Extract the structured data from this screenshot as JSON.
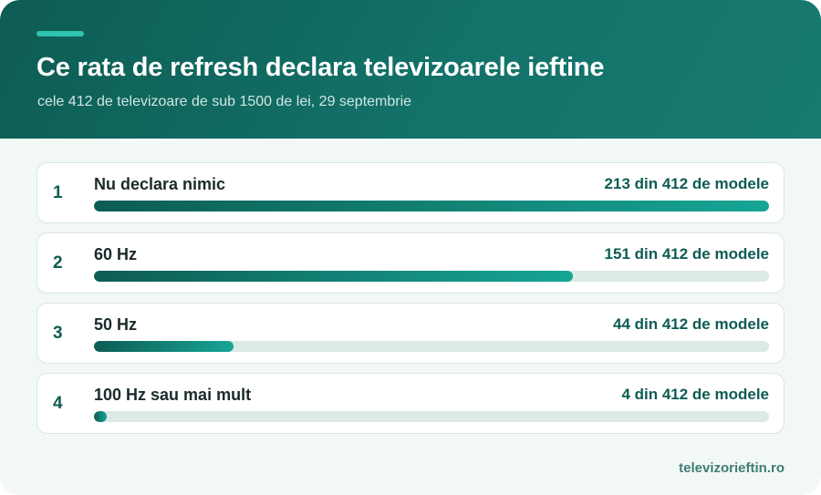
{
  "header": {
    "title": "Ce rata de refresh declara televizoarele ieftine",
    "subtitle": "cele 412 de televizoare de sub 1500 de lei, 29 septembrie"
  },
  "colors": {
    "header_bg": "#0d5c53",
    "accent": "#2ec4b0",
    "bar_start": "#0d5c53",
    "bar_end": "#16a595",
    "track": "#dde9e5"
  },
  "chart_data": {
    "type": "bar",
    "orientation": "horizontal",
    "total": 412,
    "categories": [
      "Nu declara nimic",
      "60 Hz",
      "50 Hz",
      "100 Hz sau mai mult"
    ],
    "values": [
      213,
      151,
      44,
      4
    ],
    "ranks": [
      "1",
      "2",
      "3",
      "4"
    ],
    "value_labels": [
      "213 din 412 de modele",
      "151 din 412 de modele",
      "44 din 412 de modele",
      "4 din 412 de modele"
    ],
    "xlim": [
      0,
      213
    ]
  },
  "footer": {
    "source": "televizorieftin.ro"
  }
}
